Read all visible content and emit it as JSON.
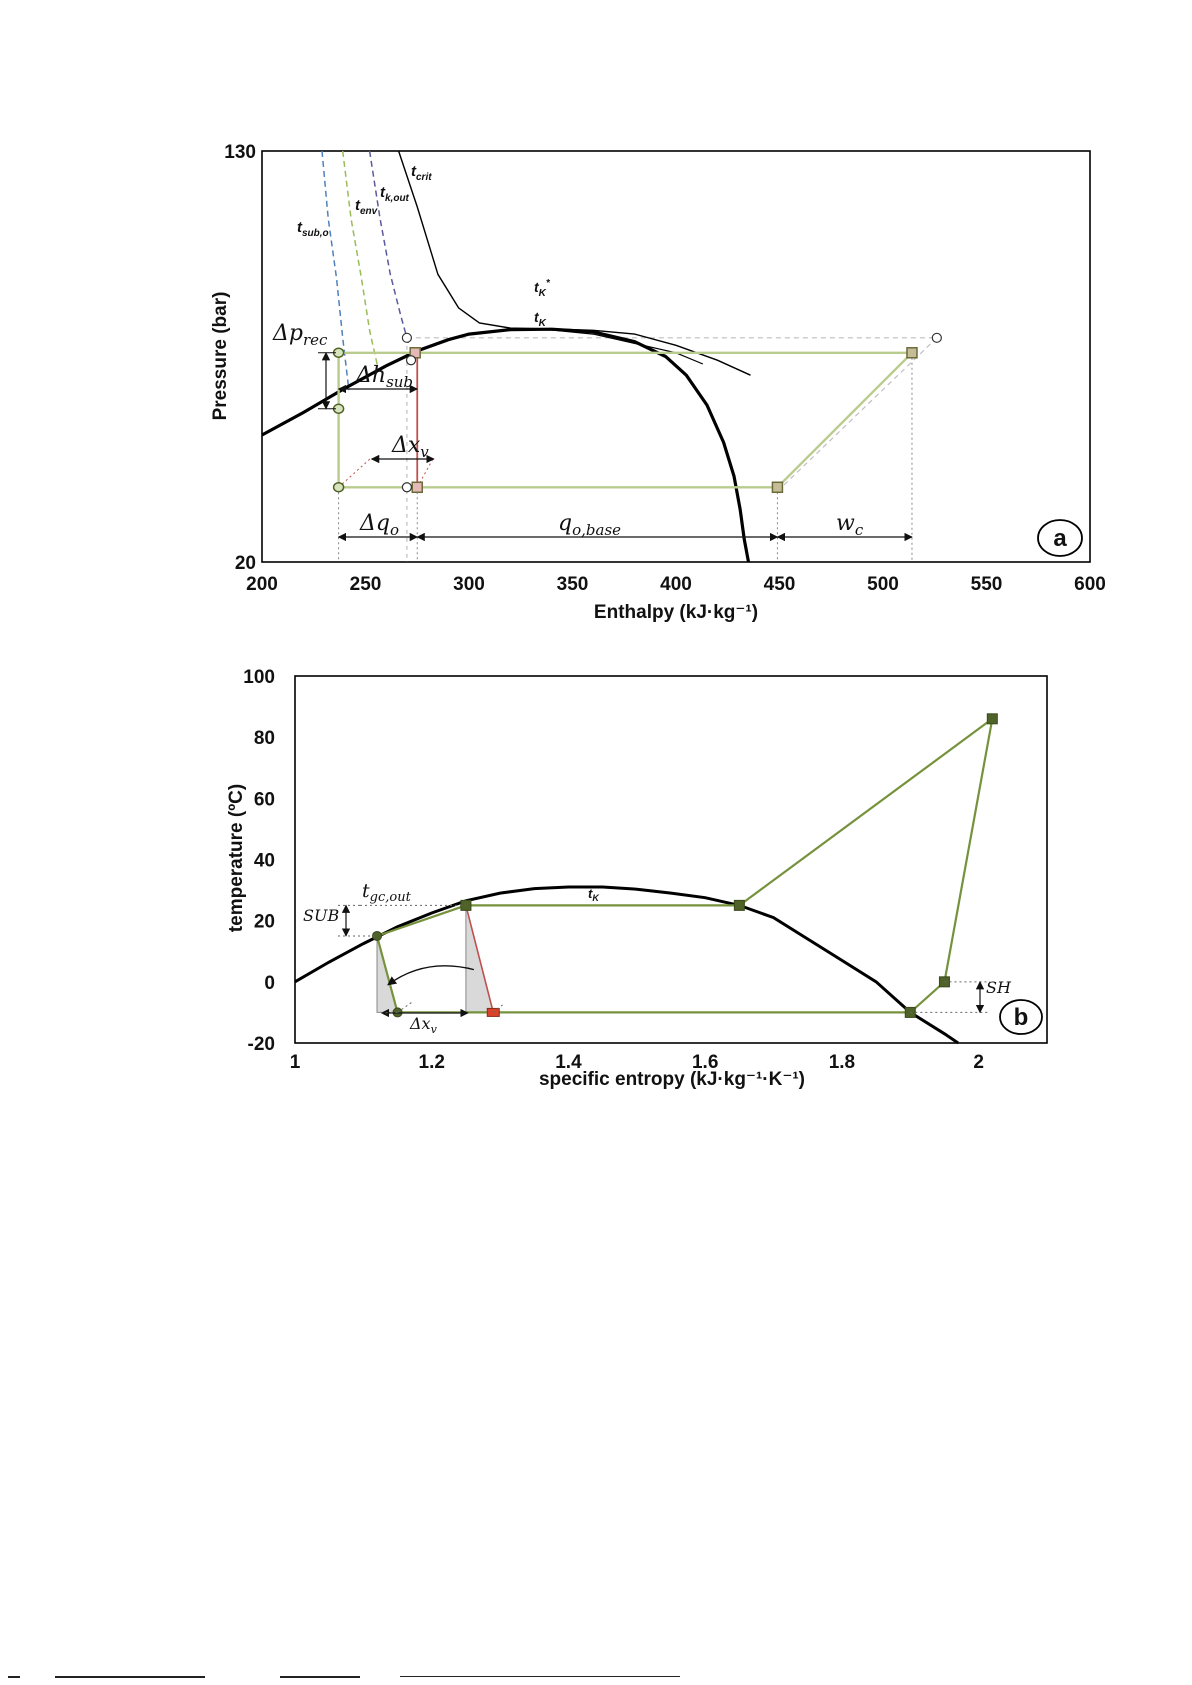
{
  "chart_data": [
    {
      "id": "a",
      "type": "line",
      "panel_badge": "a",
      "xlabel": "Enthalpy (kJ·kg⁻¹)",
      "ylabel": "Pressure (bar)",
      "xlim": [
        200,
        600
      ],
      "ylim": [
        20,
        130
      ],
      "x_ticks": [
        "200",
        "250",
        "300",
        "350",
        "400",
        "450",
        "500",
        "550",
        "600"
      ],
      "y_ticks": [
        "20",
        "130"
      ],
      "grid": false,
      "colors": {
        "dome": "#000000",
        "cycle": "#b9cc8d",
        "expansion": "#c0504d",
        "sub": "#4f81bd",
        "env": "#9bbb59",
        "kout": "#5a5a9c",
        "guide": "#bfbfbf"
      },
      "dome": [
        [
          200,
          54
        ],
        [
          220,
          60
        ],
        [
          240,
          66.5
        ],
        [
          260,
          72.5
        ],
        [
          275,
          76.5
        ],
        [
          290,
          79.5
        ],
        [
          300,
          81
        ],
        [
          320,
          82.2
        ],
        [
          340,
          82.3
        ],
        [
          360,
          81.6
        ],
        [
          380,
          79
        ],
        [
          395,
          75
        ],
        [
          405,
          70
        ],
        [
          415,
          62
        ],
        [
          423,
          52
        ],
        [
          428,
          43
        ],
        [
          431,
          34
        ],
        [
          433,
          26
        ],
        [
          435,
          20
        ]
      ],
      "isotherms": [
        {
          "name": "t_crit",
          "points": [
            [
              266,
              130
            ],
            [
              275,
              115
            ],
            [
              285,
              97
            ],
            [
              295,
              88
            ],
            [
              305,
              84
            ],
            [
              320,
              82.6
            ],
            [
              340,
              82.4
            ],
            [
              360,
              82
            ],
            [
              380,
              81
            ],
            [
              400,
              78
            ],
            [
              420,
              74
            ],
            [
              436,
              70
            ]
          ]
        },
        {
          "name": "t_K",
          "points": [
            [
              340,
              82.1
            ],
            [
              360,
              81
            ],
            [
              380,
              78.5
            ],
            [
              400,
              76
            ],
            [
              413,
              73
            ]
          ]
        },
        {
          "name": "t_sub,o",
          "points": [
            [
              229,
              130
            ],
            [
              232,
              112
            ],
            [
              236,
              96
            ],
            [
              239,
              80
            ],
            [
              242,
              66
            ]
          ]
        },
        {
          "name": "t_env",
          "points": [
            [
              239,
              130
            ],
            [
              243,
              112
            ],
            [
              248,
              96
            ],
            [
              252,
              82
            ],
            [
              256,
              72
            ]
          ]
        },
        {
          "name": "t_k,out",
          "points": [
            [
              252,
              130
            ],
            [
              257,
              112
            ],
            [
              262,
              97
            ],
            [
              267,
              86
            ],
            [
              271,
              78
            ]
          ]
        }
      ],
      "cycle": [
        [
          237,
          76
        ],
        [
          275,
          76
        ],
        [
          514,
          76
        ],
        [
          449,
          40
        ],
        [
          275,
          40
        ],
        [
          237,
          40
        ]
      ],
      "cycle_markers": [
        [
          237,
          76
        ],
        [
          274,
          76
        ],
        [
          514,
          76
        ],
        [
          237,
          61
        ],
        [
          237,
          40
        ],
        [
          449,
          40
        ],
        [
          275,
          40
        ]
      ],
      "alt_points": [
        [
          270,
          80
        ],
        [
          526,
          80
        ],
        [
          270,
          40
        ],
        [
          272,
          74
        ]
      ],
      "labels": {
        "t_crit": "t",
        "t_crit_sub": "crit",
        "t_env": "t",
        "t_env_sub": "env",
        "t_kout": "t",
        "t_kout_sub": "k,out",
        "t_subo": "t",
        "t_subo_sub": "sub,o",
        "tK_star": "t",
        "tK_star_sub": "K",
        "tK_star_sup": "*",
        "tK": "t",
        "tK_sub": "K",
        "dp_rec": "Δp",
        "dp_rec_sub": "rec",
        "dh_sub": "Δh",
        "dh_sub_sub": "sub",
        "dx_v": "Δx",
        "dx_v_sub": "v",
        "dq_o": "Δq",
        "dq_o_sub": "o",
        "q_o_base": "q",
        "q_o_base_sub": "o,base",
        "w_c": "w",
        "w_c_sub": "c"
      }
    },
    {
      "id": "b",
      "type": "line",
      "panel_badge": "b",
      "xlabel": "specific entropy (kJ·kg⁻¹·K⁻¹)",
      "ylabel": "temperature (ºC)",
      "xlim": [
        1,
        2.1
      ],
      "ylim": [
        -20,
        100
      ],
      "x_ticks": [
        "1",
        "1.2",
        "1.4",
        "1.6",
        "1.8",
        "2"
      ],
      "y_ticks": [
        "-20",
        "0",
        "20",
        "40",
        "60",
        "80",
        "100"
      ],
      "grid": false,
      "colors": {
        "dome": "#000000",
        "cycle": "#76923c",
        "marker": "#4f6228",
        "expansion": "#c0504d",
        "shade": "#d9d9d9"
      },
      "dome": [
        [
          1,
          0
        ],
        [
          1.05,
          6.5
        ],
        [
          1.1,
          12.5
        ],
        [
          1.15,
          18
        ],
        [
          1.2,
          22.5
        ],
        [
          1.25,
          26.5
        ],
        [
          1.3,
          29
        ],
        [
          1.35,
          30.5
        ],
        [
          1.4,
          31
        ],
        [
          1.45,
          31
        ],
        [
          1.5,
          30.3
        ],
        [
          1.55,
          29
        ],
        [
          1.6,
          27.5
        ],
        [
          1.65,
          25
        ],
        [
          1.7,
          21
        ],
        [
          1.75,
          14
        ],
        [
          1.8,
          7
        ],
        [
          1.85,
          0
        ],
        [
          1.9,
          -10
        ],
        [
          1.95,
          -17
        ],
        [
          1.97,
          -20
        ]
      ],
      "cycle": [
        [
          1.12,
          15
        ],
        [
          1.25,
          25
        ],
        [
          1.65,
          25
        ],
        [
          2.02,
          86
        ],
        [
          1.95,
          0
        ],
        [
          1.9,
          -10
        ],
        [
          1.29,
          -10
        ],
        [
          1.15,
          -10
        ],
        [
          1.12,
          15
        ]
      ],
      "expansion_line": [
        [
          1.25,
          25
        ],
        [
          1.29,
          -10
        ]
      ],
      "cycle_markers": [
        [
          1.12,
          15
        ],
        [
          1.25,
          25
        ],
        [
          1.65,
          25
        ],
        [
          2.02,
          86
        ],
        [
          1.95,
          0
        ],
        [
          1.9,
          -10
        ],
        [
          1.15,
          -10
        ]
      ],
      "expansion_marker": [
        1.29,
        -10
      ],
      "labels": {
        "t_gc_out": "t",
        "t_gc_out_sub": "gc,out",
        "tK": "t",
        "tK_sub": "K",
        "SUB": "SUB",
        "SH": "SH",
        "dx_v": "Δx",
        "dx_v_sub": "v"
      }
    }
  ]
}
